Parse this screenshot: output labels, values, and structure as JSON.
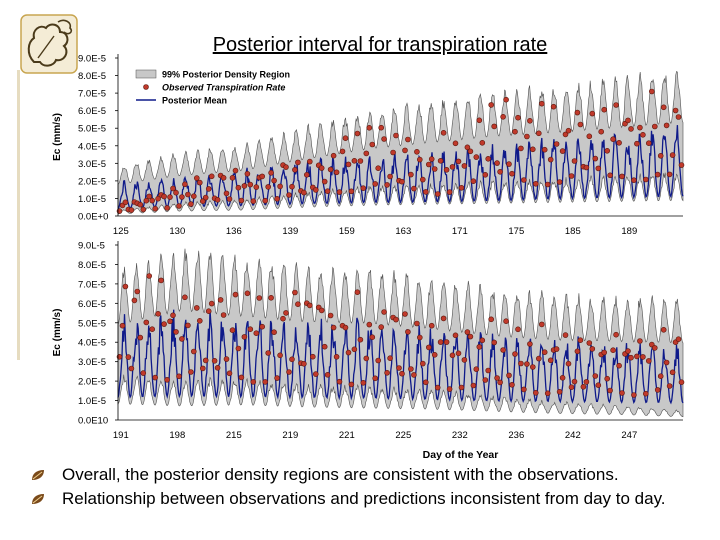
{
  "slide_title": "Posterior interval for transpiration rate",
  "bullets": [
    "Overall, the posterior density regions are consistent with the observations.",
    "Relationship between observations and predictions inconsistent from day to day."
  ],
  "colors": {
    "band": "#c8c8c8",
    "band_edge": "#505050",
    "observed": "#c0392b",
    "observed_edge": "#5a1a10",
    "mean": "#0f1a8a",
    "accent": "#c8a550"
  },
  "icons": {
    "logo": "oak-leaf-logo-icon",
    "bullet": "leaf-bullet-icon"
  },
  "chart_data": [
    {
      "type": "area",
      "ylabel": "Ec (mm/s)",
      "xlabel": "",
      "ylim": [
        0,
        9e-05
      ],
      "y_ticks": [
        "0.0E+0",
        "1.0E-5",
        "2.0E-5",
        "3.0E-5",
        "4.0E-5",
        "5.0E-5",
        "6.0E-5",
        "7.0E-5",
        "8.0E-5",
        "9.0E-5"
      ],
      "x_ticks": [
        "125",
        "130",
        "136",
        "139",
        "159",
        "163",
        "171",
        "175",
        "185",
        "189"
      ],
      "grid": false,
      "legend": {
        "placement": "top-left",
        "entries": [
          "99% Posterior Density Region",
          "Observed Transpiration Rate",
          "Posterior Mean"
        ]
      },
      "series": [
        {
          "name": "Posterior Mean",
          "values": [
            1.2e-05,
            1.5e-05,
            1.7e-05,
            2e-05,
            2.2e-05,
            2.3e-05,
            2.5e-05,
            2.8e-05,
            3e-05,
            3.2e-05
          ]
        },
        {
          "name": "99% Posterior Density Region",
          "lower": [
            2e-06,
            5e-06,
            6e-06,
            9e-06,
            1.1e-05,
            1.2e-05,
            1.3e-05,
            1.4e-05,
            1.5e-05,
            1.6e-05
          ],
          "upper": [
            2.5e-05,
            3.2e-05,
            3.6e-05,
            4.5e-05,
            5.3e-05,
            5.8e-05,
            6.3e-05,
            6.6e-05,
            7e-05,
            7.4e-05
          ]
        },
        {
          "name": "Observed Transpiration Rate",
          "values": [
            4e-06,
            1.2e-05,
            1.8e-05,
            2.1e-05,
            3.5e-05,
            2.5e-05,
            4.3e-05,
            3.8e-05,
            4.6e-05,
            4.2e-05
          ]
        }
      ]
    },
    {
      "type": "area",
      "ylabel": "Ec (mm/s)",
      "xlabel": "Day of the Year",
      "ylim": [
        0,
        9e-05
      ],
      "y_ticks": [
        "0.0E10",
        "1.0E-5",
        "2.0E-5",
        "3.0E-5",
        "4.0E-5",
        "5.0E-5",
        "6.0E-5",
        "7.0E-5",
        "8.0E-5",
        "9.0L-5"
      ],
      "x_ticks": [
        "191",
        "198",
        "215",
        "219",
        "221",
        "225",
        "232",
        "236",
        "242",
        "247"
      ],
      "grid": false,
      "legend": null,
      "series": [
        {
          "name": "Posterior Mean",
          "values": [
            3.3e-05,
            3.5e-05,
            3.4e-05,
            3.3e-05,
            3.2e-05,
            3e-05,
            2.8e-05,
            2.7e-05,
            2.6e-05,
            2.5e-05
          ]
        },
        {
          "name": "99% Posterior Density Region",
          "lower": [
            1.5e-05,
            1.3e-05,
            1.4e-05,
            1.2e-05,
            1.1e-05,
            1e-05,
            8e-06,
            6e-06,
            5e-06,
            3e-06
          ],
          "upper": [
            6.8e-05,
            7.8e-05,
            7.4e-05,
            7e-05,
            6.9e-05,
            6.5e-05,
            6e-05,
            5.7e-05,
            5.6e-05,
            5.5e-05
          ]
        },
        {
          "name": "Observed Transpiration Rate",
          "values": [
            4.5e-05,
            4.6e-05,
            4.3e-05,
            4.2e-05,
            4e-05,
            3.6e-05,
            3.3e-05,
            2.9e-05,
            2.8e-05,
            3e-05
          ]
        }
      ]
    }
  ]
}
